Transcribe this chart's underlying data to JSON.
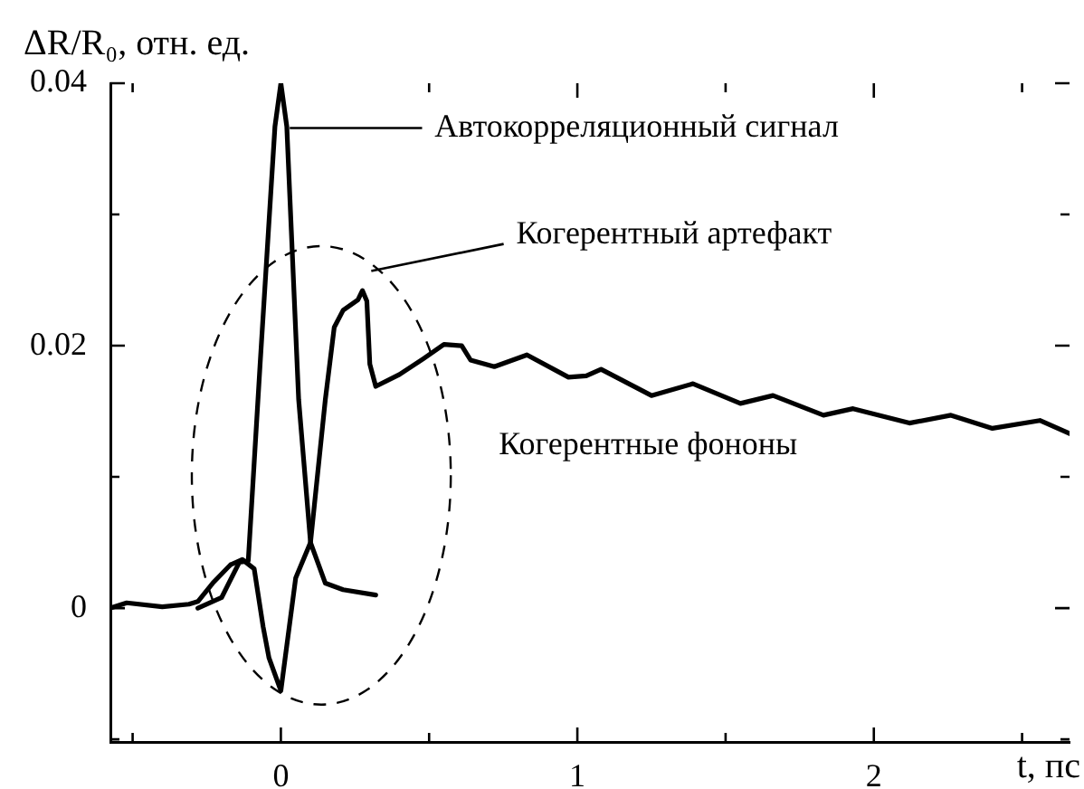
{
  "chart_data": {
    "type": "line",
    "ylabel": "ΔR/R₀, отн. ед.",
    "xlabel": "t, пс",
    "xlim": [
      -0.575,
      2.66
    ],
    "ylim": [
      -0.0102,
      0.04
    ],
    "xticks": [
      {
        "value": -0.5,
        "label": null
      },
      0,
      {
        "value": 0.5,
        "label": null
      },
      1,
      {
        "value": 1.5,
        "label": null
      },
      2,
      {
        "value": 2.5,
        "label": null
      }
    ],
    "yticks": [
      {
        "value": -0.01,
        "label": null
      },
      0,
      {
        "value": 0.01,
        "label": null
      },
      0.02,
      {
        "value": 0.03,
        "label": null
      },
      0.04
    ],
    "grid": false,
    "legend": false,
    "marker": "none",
    "line_style": "solid",
    "series": [
      {
        "color": "#000000",
        "x": [
          -0.575,
          -0.52,
          -0.4,
          -0.31,
          -0.28,
          -0.23,
          -0.17,
          -0.13,
          -0.09,
          -0.06,
          -0.04,
          0,
          0.05,
          0.1,
          0.15,
          0.18,
          0.21,
          0.26,
          0.275,
          0.29,
          0.3,
          0.32,
          0.4,
          0.48,
          0.55,
          0.61,
          0.64,
          0.72,
          0.83,
          0.97,
          1.03,
          1.08,
          1.25,
          1.39,
          1.55,
          1.66,
          1.83,
          1.93,
          2.12,
          2.26,
          2.4,
          2.56,
          2.66
        ],
        "values": [
          0,
          0.0004,
          0.0001,
          0.0003,
          0.0005,
          0.0019,
          0.0033,
          0.0037,
          0.003,
          -0.0014,
          -0.0038,
          -0.0063,
          0.0023,
          0.005,
          0.0159,
          0.0214,
          0.0227,
          0.0235,
          0.0242,
          0.0234,
          0.0186,
          0.0169,
          0.0178,
          0.019,
          0.0201,
          0.02,
          0.0189,
          0.0184,
          0.0193,
          0.0176,
          0.0177,
          0.0182,
          0.0162,
          0.0171,
          0.0156,
          0.0162,
          0.0147,
          0.0152,
          0.0141,
          0.0147,
          0.0137,
          0.0143,
          0.0133
        ]
      },
      {
        "color": "#000000",
        "x": [
          -0.28,
          -0.2,
          -0.14,
          -0.11,
          -0.07,
          -0.02,
          0,
          0.02,
          0.06,
          0.1,
          0.15,
          0.21,
          0.32
        ],
        "values": [
          0,
          0.0008,
          0.0035,
          0.0036,
          0.0186,
          0.0367,
          0.04,
          0.0367,
          0.0159,
          0.005,
          0.0019,
          0.0014,
          0.001
        ]
      }
    ],
    "annotations": [
      "Автокорреляционный сигнал",
      "Когерентный артефакт",
      "Когерентные фононы"
    ]
  }
}
